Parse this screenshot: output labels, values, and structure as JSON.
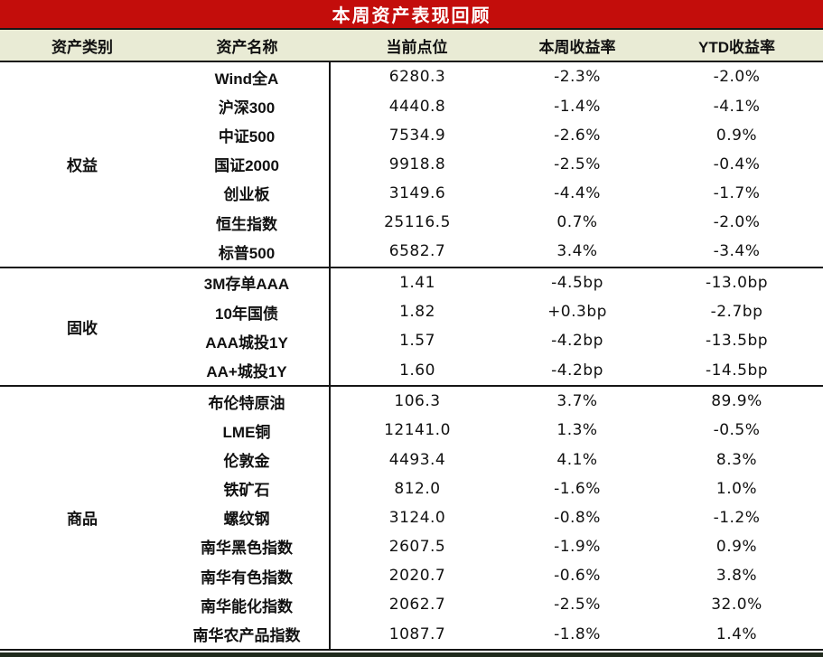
{
  "title": "本周资产表现回顾",
  "colors": {
    "title_bg": "#c30d0b",
    "title_text": "#ffffff",
    "header_bg": "#e9ebd5",
    "body_bg": "#ffffff",
    "text": "#111111",
    "border": "#161616",
    "bottom_bar": "#1f2a1c"
  },
  "table": {
    "columns": [
      "资产类别",
      "资产名称",
      "当前点位",
      "本周收益率",
      "YTD收益率"
    ],
    "sections": [
      {
        "category": "权益",
        "rows": [
          [
            "Wind全A",
            "6280.3",
            "-2.3%",
            "-2.0%"
          ],
          [
            "沪深300",
            "4440.8",
            "-1.4%",
            "-4.1%"
          ],
          [
            "中证500",
            "7534.9",
            "-2.6%",
            "0.9%"
          ],
          [
            "国证2000",
            "9918.8",
            "-2.5%",
            "-0.4%"
          ],
          [
            "创业板",
            "3149.6",
            "-4.4%",
            "-1.7%"
          ],
          [
            "恒生指数",
            "25116.5",
            "0.7%",
            "-2.0%"
          ],
          [
            "标普500",
            "6582.7",
            "3.4%",
            "-3.4%"
          ]
        ]
      },
      {
        "category": "固收",
        "rows": [
          [
            "3M存单AAA",
            "1.41",
            "-4.5bp",
            "-13.0bp"
          ],
          [
            "10年国债",
            "1.82",
            "+0.3bp",
            "-2.7bp"
          ],
          [
            "AAA城投1Y",
            "1.57",
            "-4.2bp",
            "-13.5bp"
          ],
          [
            "AA+城投1Y",
            "1.60",
            "-4.2bp",
            "-14.5bp"
          ]
        ]
      },
      {
        "category": "商品",
        "rows": [
          [
            "布伦特原油",
            "106.3",
            "3.7%",
            "89.9%"
          ],
          [
            "LME铜",
            "12141.0",
            "1.3%",
            "-0.5%"
          ],
          [
            "伦敦金",
            "4493.4",
            "4.1%",
            "8.3%"
          ],
          [
            "铁矿石",
            "812.0",
            "-1.6%",
            "1.0%"
          ],
          [
            "螺纹钢",
            "3124.0",
            "-0.8%",
            "-1.2%"
          ],
          [
            "南华黑色指数",
            "2607.5",
            "-1.9%",
            "0.9%"
          ],
          [
            "南华有色指数",
            "2020.7",
            "-0.6%",
            "3.8%"
          ],
          [
            "南华能化指数",
            "2062.7",
            "-2.5%",
            "32.0%"
          ],
          [
            "南华农产品指数",
            "1087.7",
            "-1.8%",
            "1.4%"
          ]
        ]
      }
    ]
  },
  "chart_data": {
    "type": "table",
    "title": "本周资产表现回顾",
    "columns": [
      "资产类别",
      "资产名称",
      "当前点位",
      "本周收益率",
      "YTD收益率"
    ],
    "rows": [
      [
        "权益",
        "Wind全A",
        "6280.3",
        "-2.3%",
        "-2.0%"
      ],
      [
        "权益",
        "沪深300",
        "4440.8",
        "-1.4%",
        "-4.1%"
      ],
      [
        "权益",
        "中证500",
        "7534.9",
        "-2.6%",
        "0.9%"
      ],
      [
        "权益",
        "国证2000",
        "9918.8",
        "-2.5%",
        "-0.4%"
      ],
      [
        "权益",
        "创业板",
        "3149.6",
        "-4.4%",
        "-1.7%"
      ],
      [
        "权益",
        "恒生指数",
        "25116.5",
        "0.7%",
        "-2.0%"
      ],
      [
        "权益",
        "标普500",
        "6582.7",
        "3.4%",
        "-3.4%"
      ],
      [
        "固收",
        "3M存单AAA",
        "1.41",
        "-4.5bp",
        "-13.0bp"
      ],
      [
        "固收",
        "10年国债",
        "1.82",
        "+0.3bp",
        "-2.7bp"
      ],
      [
        "固收",
        "AAA城投1Y",
        "1.57",
        "-4.2bp",
        "-13.5bp"
      ],
      [
        "固收",
        "AA+城投1Y",
        "1.60",
        "-4.2bp",
        "-14.5bp"
      ],
      [
        "商品",
        "布伦特原油",
        "106.3",
        "3.7%",
        "89.9%"
      ],
      [
        "商品",
        "LME铜",
        "12141.0",
        "1.3%",
        "-0.5%"
      ],
      [
        "商品",
        "伦敦金",
        "4493.4",
        "4.1%",
        "8.3%"
      ],
      [
        "商品",
        "铁矿石",
        "812.0",
        "-1.6%",
        "1.0%"
      ],
      [
        "商品",
        "螺纹钢",
        "3124.0",
        "-0.8%",
        "-1.2%"
      ],
      [
        "商品",
        "南华黑色指数",
        "2607.5",
        "-1.9%",
        "0.9%"
      ],
      [
        "商品",
        "南华有色指数",
        "2020.7",
        "-0.6%",
        "3.8%"
      ],
      [
        "商品",
        "南华能化指数",
        "2062.7",
        "-2.5%",
        "32.0%"
      ],
      [
        "商品",
        "南华农产品指数",
        "1087.7",
        "-1.8%",
        "1.4%"
      ]
    ]
  }
}
